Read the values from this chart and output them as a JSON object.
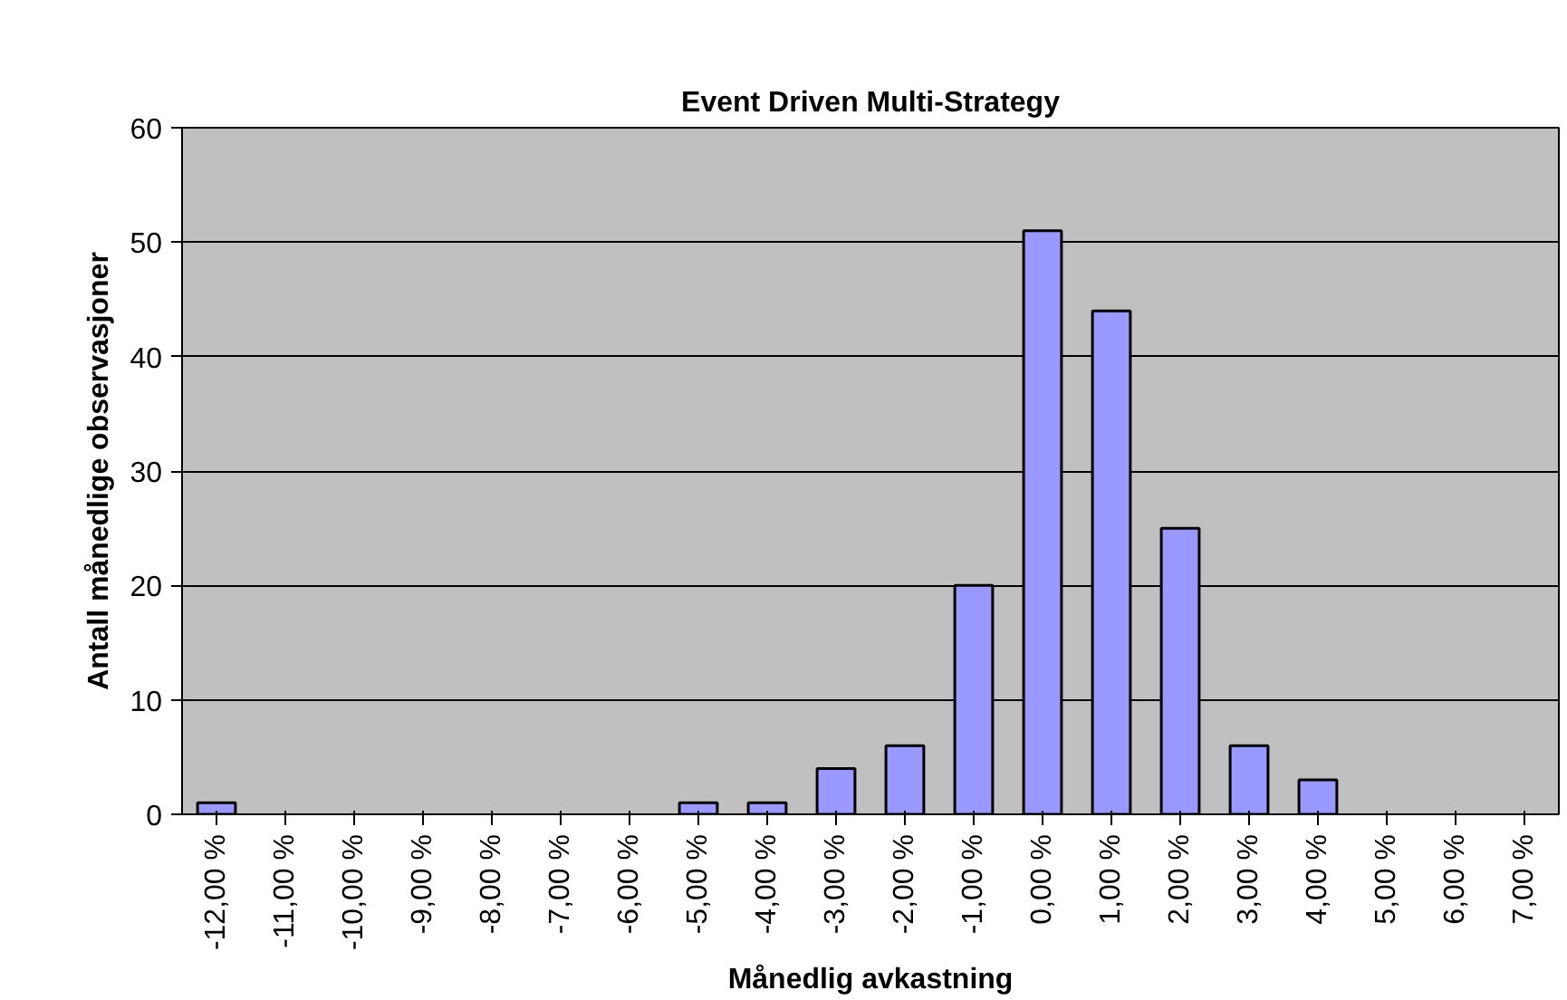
{
  "chart_data": {
    "type": "bar",
    "title": "Event Driven Multi-Strategy",
    "xlabel": "Månedlig avkastning",
    "ylabel": "Antall månedlige observasjoner",
    "categories": [
      "-12,00 %",
      "-11,00 %",
      "-10,00 %",
      "-9,00 %",
      "-8,00 %",
      "-7,00 %",
      "-6,00 %",
      "-5,00 %",
      "-4,00 %",
      "-3,00 %",
      "-2,00 %",
      "-1,00 %",
      "0,00 %",
      "1,00 %",
      "2,00 %",
      "3,00 %",
      "4,00 %",
      "5,00 %",
      "6,00 %",
      "7,00 %"
    ],
    "values": [
      1,
      0,
      0,
      0,
      0,
      0,
      0,
      1,
      1,
      4,
      6,
      20,
      51,
      44,
      25,
      6,
      3,
      0,
      0,
      0
    ],
    "color": "#9999ff",
    "ylim": [
      0,
      60
    ],
    "yticks": [
      0,
      10,
      20,
      30,
      40,
      50,
      60
    ],
    "grid": "y"
  }
}
